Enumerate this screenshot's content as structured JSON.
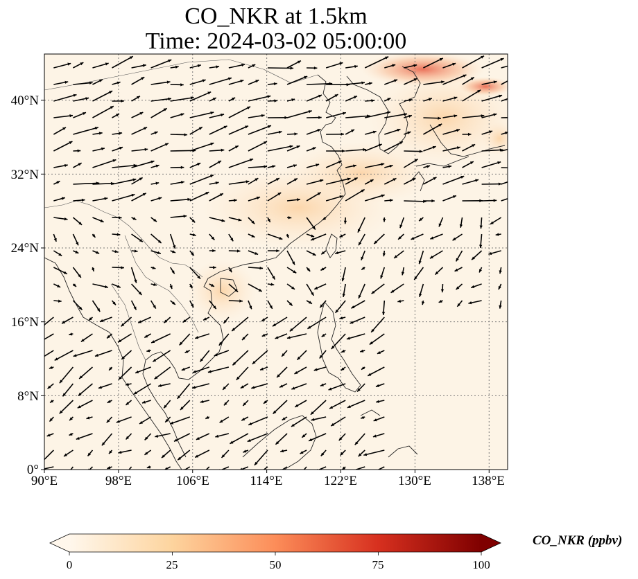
{
  "title_line1": "CO_NKR at 1.5km",
  "title_line2": "Time: 2024-03-02 05:00:00",
  "map": {
    "lon_range": [
      90,
      140
    ],
    "lat_range": [
      0,
      45
    ],
    "lon_ticks": [
      "90°E",
      "98°E",
      "106°E",
      "114°E",
      "122°E",
      "130°E",
      "138°E"
    ],
    "lat_ticks": [
      "0°",
      "8°N",
      "16°N",
      "24°N",
      "32°N",
      "40°N"
    ],
    "gridlines": true,
    "field_colors": {
      "background": "#fdf4e6",
      "low": "#fde3c6",
      "high": "#e3593e"
    }
  },
  "colorbar": {
    "label": "CO_NKR (ppbv)",
    "ticks": [
      "0",
      "25",
      "50",
      "75",
      "100"
    ],
    "range": [
      0,
      100
    ],
    "extend": "both",
    "colormap": "OrRd",
    "colors": [
      "#fff7ec",
      "#fdd49e",
      "#fc8d59",
      "#d7301f",
      "#7f0000"
    ]
  }
}
